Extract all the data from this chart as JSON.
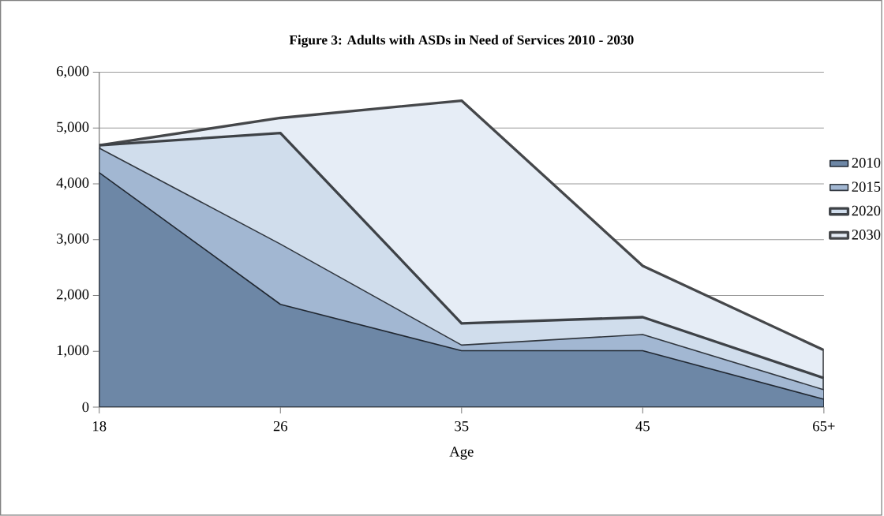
{
  "chart_data": {
    "type": "area",
    "title": "Figure 3: Adults with ASDs in Need of Services 2010 - 2030",
    "xlabel": "Age",
    "categories": [
      "18",
      "26",
      "35",
      "45",
      "65+"
    ],
    "series": [
      {
        "name": "2010",
        "color": "#6d87a6",
        "values": [
          4200,
          1840,
          1010,
          1010,
          140
        ]
      },
      {
        "name": "2015",
        "color": "#a2b7d2",
        "values": [
          4640,
          2920,
          1110,
          1300,
          310
        ]
      },
      {
        "name": "2020",
        "color": "#d0ddec",
        "values": [
          4690,
          4910,
          1500,
          1610,
          520
        ]
      },
      {
        "name": "2030",
        "color": "#e6edf6",
        "values": [
          4690,
          5180,
          5490,
          2530,
          1020
        ]
      }
    ],
    "ylim": [
      0,
      6000
    ],
    "yticks": [
      {
        "value": 0,
        "label": "0"
      },
      {
        "value": 1000,
        "label": "1,000"
      },
      {
        "value": 2000,
        "label": "2,000"
      },
      {
        "value": 3000,
        "label": "3,000"
      },
      {
        "value": 4000,
        "label": "4,000"
      },
      {
        "value": 5000,
        "label": "5,000"
      },
      {
        "value": 6000,
        "label": "6,000"
      }
    ],
    "grid": "y",
    "legend": "right"
  }
}
